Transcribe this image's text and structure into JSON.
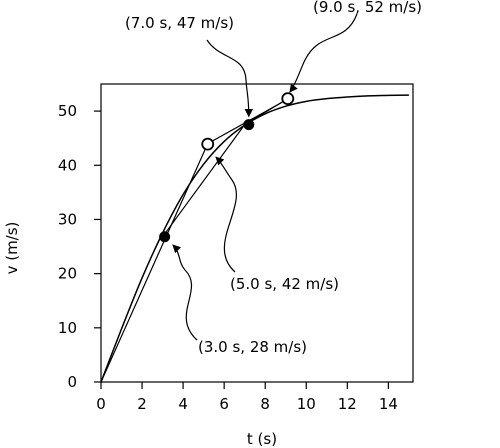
{
  "chart_data": {
    "type": "line",
    "title": "",
    "xlabel": "t (s)",
    "ylabel": "v (m/s)",
    "xlim": [
      0,
      15.2
    ],
    "ylim": [
      0,
      55
    ],
    "x_ticks": [
      "0",
      "2",
      "4",
      "6",
      "8",
      "10",
      "12",
      "14"
    ],
    "y_ticks": [
      "0",
      "10",
      "20",
      "30",
      "40",
      "50"
    ],
    "grid": false,
    "curve": {
      "description_free": true,
      "x": [
        0,
        1,
        2,
        3,
        4,
        5,
        6,
        7,
        8,
        9,
        10,
        11,
        12,
        13,
        14,
        15
      ],
      "y": [
        0,
        9.8,
        19.2,
        27.5,
        34.6,
        40.2,
        44.4,
        47.4,
        49.5,
        50.9,
        51.8,
        52.3,
        52.6,
        52.8,
        52.9,
        52.95
      ]
    },
    "tangent_segments": [
      {
        "x": [
          0.0,
          5.2
        ],
        "y": [
          0.0,
          44.0
        ]
      },
      {
        "x": [
          3.0,
          7.0
        ],
        "y": [
          26.8,
          47.5
        ]
      },
      {
        "x": [
          5.2,
          9.0
        ],
        "y": [
          44.0,
          52.0
        ]
      },
      {
        "x": [
          7.0,
          9.1
        ],
        "y": [
          47.5,
          52.3
        ]
      }
    ],
    "points_filled": [
      {
        "x": 3.1,
        "y": 26.8
      },
      {
        "x": 7.2,
        "y": 47.5
      }
    ],
    "points_open": [
      {
        "x": 5.2,
        "y": 43.9
      },
      {
        "x": 9.1,
        "y": 52.3
      }
    ],
    "annotations": [
      {
        "text": "(3.0 s, 28 m/s)",
        "target": {
          "x": 3.5,
          "y": 25.3
        }
      },
      {
        "text": "(5.0 s, 42 m/s)",
        "target": {
          "x": 5.6,
          "y": 41.5
        }
      },
      {
        "text": "(7.0 s, 47 m/s)",
        "target": {
          "x": 7.2,
          "y": 49.0
        }
      },
      {
        "text": "(9.0 s, 52 m/s)",
        "target": {
          "x": 9.2,
          "y": 53.5
        }
      }
    ]
  }
}
